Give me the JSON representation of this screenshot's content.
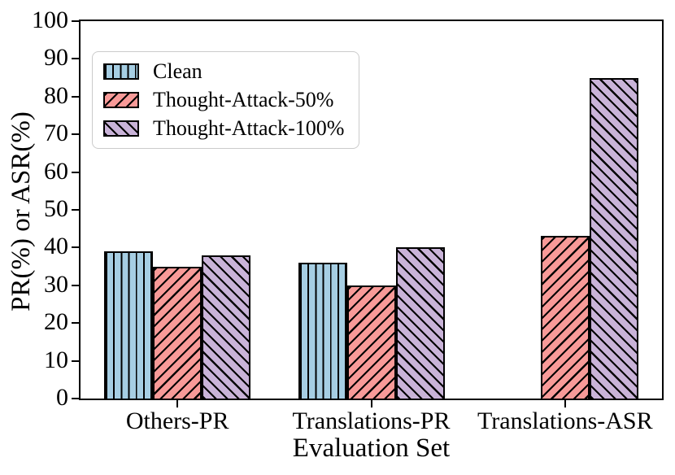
{
  "chart_data": {
    "type": "bar",
    "title": "",
    "xlabel": "Evaluation Set",
    "ylabel": "PR(%) or ASR(%)",
    "categories": [
      "Others-PR",
      "Translations-PR",
      "Translations-ASR"
    ],
    "series": [
      {
        "name": "Clean",
        "color": "#a6cee3",
        "hatch": "vertical",
        "values": [
          39,
          36,
          0
        ]
      },
      {
        "name": "Thought-Attack-50%",
        "color": "#f89a98",
        "hatch": "diagonal-forward",
        "values": [
          35,
          30,
          43
        ]
      },
      {
        "name": "Thought-Attack-100%",
        "color": "#c9b3d8",
        "hatch": "diagonal-back",
        "values": [
          38,
          40,
          85
        ]
      }
    ],
    "ylim": [
      0,
      100
    ],
    "yticks": [
      0,
      10,
      20,
      30,
      40,
      50,
      60,
      70,
      80,
      90,
      100
    ],
    "grid": false,
    "legend_position": "upper-left",
    "edge_color": "#000000",
    "legend_border_color": "#cbcbcb"
  }
}
